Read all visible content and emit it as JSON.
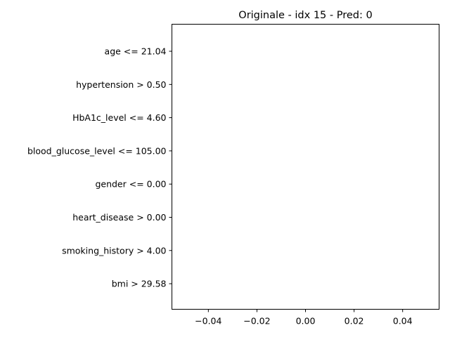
{
  "chart_data": {
    "type": "bar",
    "orientation": "horizontal",
    "title": "Originale - idx 15 - Pred: 0",
    "xlabel": "",
    "ylabel": "",
    "categories": [
      "age <= 21.04",
      "hypertension > 0.50",
      "HbA1c_level <= 4.60",
      "blood_glucose_level <= 105.00",
      "gender <= 0.00",
      "heart_disease > 0.00",
      "smoking_history > 4.00",
      "bmi > 29.58"
    ],
    "values": [
      0,
      0,
      0,
      0,
      0,
      0,
      0,
      0
    ],
    "xlim": [
      -0.055,
      0.055
    ],
    "xticks": [
      -0.04,
      -0.02,
      0.0,
      0.02,
      0.04
    ],
    "xtick_labels": [
      "−0.04",
      "−0.02",
      "0.00",
      "0.02",
      "0.04"
    ],
    "grid": false,
    "legend": "none"
  }
}
